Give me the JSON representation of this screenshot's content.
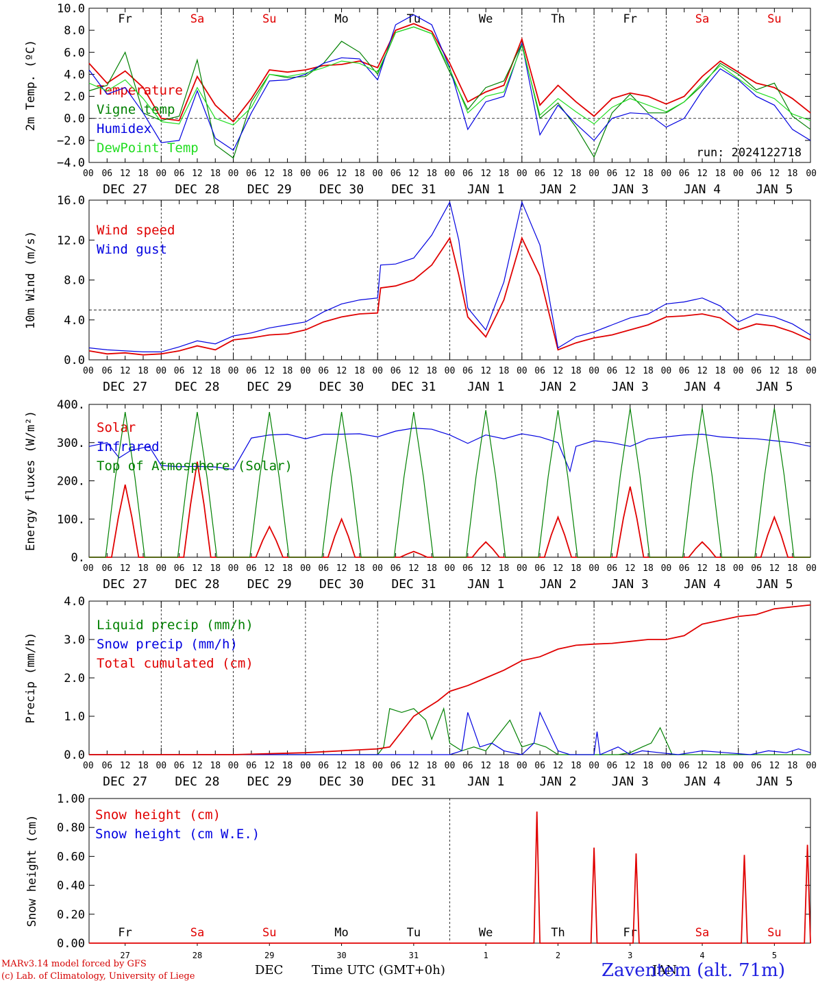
{
  "run_label": "run: 2024122718",
  "station": "Zaventem (alt. 71m)",
  "footer": {
    "credit1": "MARv3.14 model forced by GFS",
    "credit2": "(c) Lab. of Climatology, University of Liege",
    "month": "DEC",
    "month2": "JAN",
    "time_label": "Time UTC (GMT+0h)"
  },
  "colors": {
    "red": "#e00000",
    "green": "#008000",
    "blue": "#0000e0",
    "lightgreen": "#22dd22",
    "weekend": "#e00000"
  },
  "hour_ticks": [
    "00",
    "06",
    "12",
    "18",
    "00",
    "06",
    "12",
    "18",
    "00",
    "06",
    "12",
    "18",
    "00",
    "06",
    "12",
    "18",
    "00",
    "06",
    "12",
    "18",
    "00",
    "06",
    "12",
    "18",
    "00",
    "06",
    "12",
    "18",
    "00",
    "06",
    "12",
    "18",
    "00",
    "06",
    "12",
    "18",
    "00",
    "06",
    "12",
    "18",
    "00"
  ],
  "date_labels": [
    "DEC 27",
    "DEC 28",
    "DEC 29",
    "DEC 30",
    "DEC 31",
    "JAN  1",
    "JAN  2",
    "JAN  3",
    "JAN  4",
    "JAN  5"
  ],
  "day_names": [
    {
      "t": "Fr",
      "weekend": false
    },
    {
      "t": "Sa",
      "weekend": true
    },
    {
      "t": "Su",
      "weekend": true
    },
    {
      "t": "Mo",
      "weekend": false
    },
    {
      "t": "Tu",
      "weekend": false
    },
    {
      "t": "We",
      "weekend": false
    },
    {
      "t": "Th",
      "weekend": false
    },
    {
      "t": "Fr",
      "weekend": false
    },
    {
      "t": "Sa",
      "weekend": true
    },
    {
      "t": "Su",
      "weekend": true
    }
  ],
  "day_numbers": [
    "27",
    "28",
    "29",
    "30",
    "31",
    "1",
    "2",
    "3",
    "4",
    "5"
  ],
  "chart_data": [
    {
      "type": "line",
      "ylabel": "2m Temp. (ºC)",
      "ylim": [
        -4,
        10
      ],
      "yticks": [
        "10.0",
        "8.0",
        "6.0",
        "4.0",
        "2.0",
        "0.0",
        "−2.0",
        "−4.0"
      ],
      "x_unit": "hours from 2024-12-27 00 UTC",
      "ref_line": 0,
      "series": [
        {
          "name": "Temperature",
          "color": "red",
          "x": [
            0,
            6,
            12,
            18,
            24,
            30,
            36,
            42,
            48,
            54,
            60,
            66,
            72,
            78,
            84,
            90,
            96,
            102,
            108,
            114,
            120,
            126,
            132,
            138,
            144,
            150,
            156,
            162,
            168,
            174,
            180,
            186,
            192,
            198,
            204,
            210,
            216,
            222,
            228,
            234,
            240
          ],
          "values": [
            5.0,
            3.2,
            4.3,
            2.8,
            0.0,
            -0.2,
            3.8,
            1.2,
            -0.3,
            1.8,
            4.4,
            4.2,
            4.4,
            4.8,
            4.9,
            5.2,
            4.6,
            8.0,
            8.6,
            7.9,
            5.0,
            1.5,
            2.4,
            3.0,
            7.2,
            1.2,
            3.0,
            1.5,
            0.2,
            1.8,
            2.3,
            2.0,
            1.3,
            2.0,
            3.8,
            5.2,
            4.2,
            3.2,
            2.8,
            1.8,
            0.5
          ]
        },
        {
          "name": "Vigne temp",
          "color": "green",
          "x": [
            0,
            6,
            12,
            18,
            24,
            30,
            36,
            42,
            48,
            54,
            60,
            66,
            72,
            78,
            84,
            90,
            96,
            102,
            108,
            114,
            120,
            126,
            132,
            138,
            144,
            150,
            156,
            162,
            168,
            174,
            180,
            186,
            192,
            198,
            204,
            210,
            216,
            222,
            228,
            234,
            240
          ],
          "values": [
            2.5,
            3.0,
            6.0,
            0.5,
            -0.2,
            0.2,
            5.3,
            -2.4,
            -3.6,
            1.5,
            4.0,
            3.7,
            3.8,
            5.0,
            7.0,
            6.0,
            4.0,
            7.8,
            8.3,
            7.7,
            4.2,
            0.8,
            2.8,
            3.4,
            6.8,
            0.0,
            1.4,
            -0.8,
            -3.5,
            0.5,
            2.2,
            0.5,
            0.5,
            1.5,
            3.0,
            5.0,
            4.0,
            2.6,
            3.2,
            0.2,
            -1.0
          ]
        },
        {
          "name": "Humidex",
          "color": "blue",
          "x": [
            0,
            6,
            12,
            18,
            24,
            30,
            36,
            42,
            48,
            54,
            60,
            66,
            72,
            78,
            84,
            90,
            96,
            102,
            108,
            114,
            120,
            126,
            132,
            138,
            144,
            150,
            156,
            162,
            168,
            174,
            180,
            186,
            192,
            198,
            204,
            210,
            216,
            222,
            228,
            234,
            240
          ],
          "values": [
            4.4,
            2.2,
            2.8,
            0.5,
            -2.2,
            -2.0,
            2.5,
            -1.8,
            -2.9,
            0.5,
            3.4,
            3.5,
            4.0,
            5.0,
            5.5,
            5.4,
            3.5,
            8.5,
            9.4,
            8.5,
            4.6,
            -1.0,
            1.5,
            2.0,
            6.8,
            -1.5,
            1.2,
            -0.5,
            -2.0,
            0.0,
            0.5,
            0.4,
            -0.8,
            0.0,
            2.5,
            4.5,
            3.5,
            2.0,
            1.2,
            -1.0,
            -2.0
          ]
        },
        {
          "name": "DewPoint Temp",
          "color": "lightgreen",
          "x": [
            0,
            6,
            12,
            18,
            24,
            30,
            36,
            42,
            48,
            54,
            60,
            66,
            72,
            78,
            84,
            90,
            96,
            102,
            108,
            114,
            120,
            126,
            132,
            138,
            144,
            150,
            156,
            162,
            168,
            174,
            180,
            186,
            192,
            198,
            204,
            210,
            216,
            222,
            228,
            234,
            240
          ],
          "values": [
            3.2,
            2.5,
            3.5,
            1.8,
            -0.3,
            -0.5,
            2.8,
            0.0,
            -0.6,
            1.0,
            4.0,
            3.8,
            4.1,
            4.6,
            5.2,
            5.0,
            4.2,
            7.8,
            8.3,
            7.7,
            4.5,
            0.5,
            2.0,
            2.4,
            6.6,
            0.3,
            1.8,
            0.6,
            -0.5,
            1.0,
            1.8,
            1.2,
            0.6,
            1.5,
            3.2,
            4.8,
            3.6,
            2.4,
            1.8,
            0.4,
            -0.2
          ]
        }
      ]
    },
    {
      "type": "line",
      "ylabel": "10m Wind (m/s)",
      "ylim": [
        0,
        16
      ],
      "yticks": [
        "16.0",
        "12.0",
        "8.0",
        "4.0",
        "0.0"
      ],
      "x_unit": "hours from 2024-12-27 00 UTC",
      "ref_line": 5,
      "series": [
        {
          "name": "Wind speed",
          "color": "red",
          "x": [
            0,
            6,
            12,
            18,
            24,
            30,
            36,
            42,
            48,
            54,
            60,
            66,
            72,
            78,
            84,
            90,
            96,
            97,
            102,
            108,
            114,
            120,
            123,
            126,
            132,
            138,
            144,
            150,
            156,
            162,
            168,
            174,
            180,
            186,
            192,
            198,
            204,
            210,
            216,
            222,
            228,
            234,
            240
          ],
          "values": [
            0.9,
            0.6,
            0.7,
            0.5,
            0.6,
            0.9,
            1.4,
            1.0,
            2.0,
            2.2,
            2.5,
            2.6,
            3.0,
            3.8,
            4.3,
            4.6,
            4.7,
            7.2,
            7.4,
            8.0,
            9.5,
            12.2,
            8.5,
            4.3,
            2.3,
            6.0,
            12.2,
            8.4,
            1.0,
            1.7,
            2.2,
            2.5,
            3.0,
            3.5,
            4.3,
            4.4,
            4.6,
            4.2,
            3.0,
            3.6,
            3.4,
            2.8,
            2.0
          ]
        },
        {
          "name": "Wind gust",
          "color": "blue",
          "x": [
            0,
            6,
            12,
            18,
            24,
            30,
            36,
            42,
            48,
            54,
            60,
            66,
            72,
            78,
            84,
            90,
            96,
            97,
            102,
            108,
            114,
            120,
            123,
            126,
            132,
            138,
            144,
            150,
            156,
            162,
            168,
            174,
            180,
            186,
            192,
            198,
            204,
            210,
            216,
            222,
            228,
            234,
            240
          ],
          "values": [
            1.2,
            1.0,
            0.9,
            0.8,
            0.8,
            1.3,
            1.9,
            1.6,
            2.4,
            2.7,
            3.2,
            3.5,
            3.8,
            4.8,
            5.6,
            6.0,
            6.2,
            9.5,
            9.6,
            10.2,
            12.5,
            15.8,
            12.0,
            5.2,
            3.0,
            7.8,
            15.8,
            11.5,
            1.2,
            2.3,
            2.8,
            3.5,
            4.2,
            4.6,
            5.6,
            5.8,
            6.2,
            5.4,
            3.8,
            4.6,
            4.3,
            3.6,
            2.5
          ]
        }
      ]
    },
    {
      "type": "line",
      "ylabel": "Energy fluxes (W/m²)",
      "ylim": [
        0,
        400
      ],
      "yticks": [
        "400.",
        "300.",
        "200.",
        "100.",
        "0."
      ],
      "x_unit": "hours from 2024-12-27 00 UTC",
      "series": [
        {
          "name": "Solar",
          "color": "red",
          "peaks": [
            190,
            250,
            80,
            100,
            15,
            40,
            105,
            185,
            40,
            105
          ]
        },
        {
          "name": "Infrared",
          "color": "blue",
          "x": [
            0,
            6,
            10,
            14,
            20,
            24,
            30,
            36,
            42,
            48,
            54,
            60,
            66,
            72,
            78,
            84,
            90,
            96,
            102,
            108,
            114,
            120,
            126,
            132,
            138,
            144,
            150,
            156,
            160,
            162,
            168,
            174,
            180,
            186,
            192,
            198,
            204,
            210,
            216,
            222,
            228,
            234,
            240
          ],
          "values": [
            290,
            300,
            260,
            280,
            290,
            240,
            237,
            238,
            236,
            230,
            312,
            320,
            322,
            310,
            322,
            322,
            323,
            315,
            330,
            338,
            335,
            320,
            298,
            320,
            310,
            323,
            315,
            300,
            225,
            290,
            305,
            300,
            290,
            310,
            315,
            320,
            322,
            315,
            312,
            310,
            305,
            300,
            290
          ]
        },
        {
          "name": "Top of Atmosphere (Solar)",
          "color": "green",
          "peaks": [
            380,
            380,
            380,
            380,
            380,
            385,
            385,
            390,
            390,
            390
          ]
        }
      ]
    },
    {
      "type": "line",
      "ylabel": "Precip (mm/h)",
      "ylim": [
        0,
        4
      ],
      "yticks": [
        "4.0",
        "3.0",
        "2.0",
        "1.0",
        "0.0"
      ],
      "x_unit": "hours from 2024-12-27 00 UTC",
      "series": [
        {
          "name": "Liquid precip (mm/h)",
          "color": "green",
          "x": [
            0,
            96,
            98,
            100,
            104,
            108,
            112,
            114,
            118,
            120,
            124,
            128,
            132,
            140,
            144,
            148,
            152,
            156,
            168,
            176,
            180,
            184,
            187,
            190,
            194,
            200,
            210,
            240
          ],
          "values": [
            0,
            0,
            0.2,
            1.2,
            1.1,
            1.2,
            0.9,
            0.4,
            1.2,
            0.3,
            0.1,
            0.2,
            0.1,
            0.9,
            0.2,
            0.3,
            0.2,
            0,
            0,
            0,
            0.05,
            0.2,
            0.3,
            0.7,
            0,
            0,
            0,
            0
          ]
        },
        {
          "name": "Snow precip (mm/h)",
          "color": "blue",
          "x": [
            0,
            120,
            124,
            126,
            130,
            134,
            138,
            144,
            148,
            150,
            156,
            160,
            168,
            169,
            170,
            176,
            180,
            184,
            190,
            196,
            204,
            212,
            220,
            226,
            232,
            236,
            240
          ],
          "values": [
            0,
            0,
            0.1,
            1.1,
            0.2,
            0.3,
            0.1,
            0,
            0.3,
            1.1,
            0.1,
            0,
            0,
            0.6,
            0,
            0.2,
            0,
            0.1,
            0.05,
            0,
            0.1,
            0.05,
            0,
            0.1,
            0.05,
            0.15,
            0.05
          ]
        },
        {
          "name": "Total cumulated (cm)",
          "color": "red",
          "x": [
            0,
            48,
            72,
            96,
            100,
            108,
            112,
            116,
            120,
            126,
            132,
            138,
            144,
            150,
            156,
            162,
            168,
            174,
            180,
            186,
            192,
            198,
            204,
            210,
            216,
            222,
            228,
            234,
            240
          ],
          "values": [
            0,
            0,
            0.05,
            0.15,
            0.2,
            1.0,
            1.2,
            1.4,
            1.65,
            1.8,
            2.0,
            2.2,
            2.45,
            2.55,
            2.75,
            2.85,
            2.88,
            2.9,
            2.95,
            3.0,
            3.0,
            3.1,
            3.4,
            3.5,
            3.6,
            3.65,
            3.8,
            3.85,
            3.9
          ]
        }
      ]
    },
    {
      "type": "line",
      "ylabel": "Snow height (cm)",
      "ylim": [
        0,
        1
      ],
      "yticks": [
        "1.00",
        "0.80",
        "0.60",
        "0.40",
        "0.20",
        "0.00"
      ],
      "x_unit": "hours from 2024-12-27 00 UTC",
      "series": [
        {
          "name": "Snow height (cm)",
          "color": "red",
          "spikes": [
            {
              "x": 149,
              "v": 0.91
            },
            {
              "x": 168,
              "v": 0.66
            },
            {
              "x": 182,
              "v": 0.62
            },
            {
              "x": 218,
              "v": 0.61
            },
            {
              "x": 239,
              "v": 0.68
            }
          ]
        },
        {
          "name": "Snow height (cm W.E.)",
          "color": "blue",
          "spikes": []
        }
      ]
    }
  ]
}
